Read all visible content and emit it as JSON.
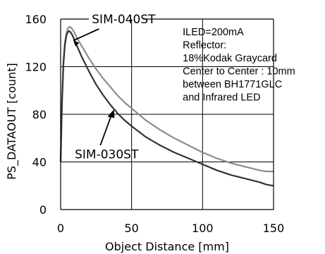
{
  "chart_data": {
    "type": "line",
    "xlabel": "Object Distance [mm]",
    "ylabel": "PS_DATAOUT [count]",
    "xlim": [
      0,
      150
    ],
    "ylim": [
      0,
      160
    ],
    "xticks": [
      0,
      50,
      100,
      150
    ],
    "yticks": [
      0,
      40,
      80,
      120,
      160
    ],
    "grid": true,
    "legend": "labels with arrows pointing to curves",
    "note": [
      "ILED=200mA",
      "Reflector:",
      "18%Kodak Graycard",
      "Center to Center : 10mm",
      "between BH1771GLC",
      "and Infrared LED"
    ],
    "series": [
      {
        "name": "SIM-040ST",
        "color": "#8c8c8c",
        "x": [
          0,
          1,
          2,
          3,
          4,
          5,
          6,
          7,
          8,
          10,
          12,
          15,
          20,
          25,
          30,
          35,
          40,
          45,
          50,
          60,
          70,
          80,
          90,
          100,
          110,
          120,
          130,
          140,
          145,
          150
        ],
        "y": [
          40,
          95,
          125,
          140,
          148,
          152,
          153.5,
          153,
          152,
          148,
          143,
          137,
          127,
          118,
          110,
          103,
          96,
          90,
          85,
          75,
          67,
          60,
          54,
          48,
          43,
          39,
          36,
          33,
          32,
          32
        ]
      },
      {
        "name": "SIM-030ST",
        "color": "#333333",
        "x": [
          0,
          1,
          2,
          3,
          4,
          5,
          6,
          7,
          8,
          10,
          12,
          15,
          20,
          25,
          30,
          35,
          40,
          45,
          50,
          60,
          70,
          80,
          90,
          100,
          110,
          120,
          130,
          140,
          145,
          150
        ],
        "y": [
          40,
          90,
          122,
          138,
          146,
          149,
          150,
          149,
          147,
          142,
          136,
          128,
          116,
          105,
          96,
          88,
          81,
          75,
          70,
          61,
          54,
          48,
          43,
          38,
          33,
          29,
          26,
          23,
          21,
          20
        ]
      }
    ]
  }
}
